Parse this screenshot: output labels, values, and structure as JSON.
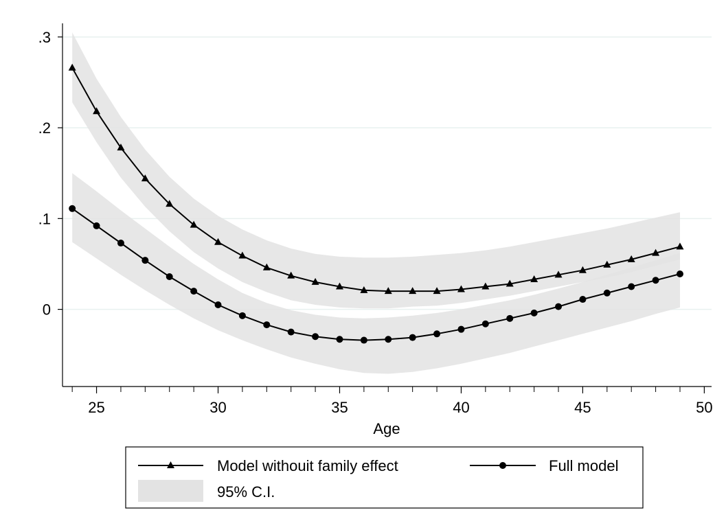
{
  "chart_data": {
    "type": "line",
    "title": "",
    "xlabel": "Age",
    "ylabel": "",
    "xlim": [
      23.6,
      50.3
    ],
    "ylim": [
      -0.085,
      0.315
    ],
    "xticks": [
      25,
      30,
      35,
      40,
      45,
      50
    ],
    "xtick_labels": [
      "25",
      "30",
      "35",
      "40",
      "45",
      "50"
    ],
    "yticks": [
      0,
      0.1,
      0.2,
      0.3
    ],
    "ytick_labels": [
      "0",
      ".1",
      ".2",
      ".3"
    ],
    "grid": "horizontal",
    "x": [
      24,
      25,
      26,
      27,
      28,
      29,
      30,
      31,
      32,
      33,
      34,
      35,
      36,
      37,
      38,
      39,
      40,
      41,
      42,
      43,
      44,
      45,
      46,
      47,
      48,
      49
    ],
    "series": [
      {
        "name": "Model withouit family effect",
        "marker": "triangle",
        "color": "#000000",
        "values": [
          0.266,
          0.218,
          0.178,
          0.144,
          0.116,
          0.093,
          0.074,
          0.059,
          0.046,
          0.037,
          0.03,
          0.025,
          0.021,
          0.02,
          0.02,
          0.02,
          0.022,
          0.025,
          0.028,
          0.033,
          0.038,
          0.043,
          0.049,
          0.055,
          0.062,
          0.069
        ],
        "ci_lower": [
          0.228,
          0.184,
          0.145,
          0.113,
          0.086,
          0.063,
          0.045,
          0.03,
          0.019,
          0.01,
          0.005,
          0.002,
          0.001,
          0.001,
          0.003,
          0.004,
          0.007,
          0.011,
          0.015,
          0.02,
          0.025,
          0.03,
          0.035,
          0.041,
          0.048,
          0.055
        ],
        "ci_upper": [
          0.305,
          0.254,
          0.212,
          0.176,
          0.146,
          0.122,
          0.103,
          0.088,
          0.076,
          0.067,
          0.061,
          0.058,
          0.057,
          0.057,
          0.058,
          0.06,
          0.062,
          0.065,
          0.069,
          0.074,
          0.079,
          0.084,
          0.089,
          0.095,
          0.101,
          0.107
        ]
      },
      {
        "name": "Full model",
        "marker": "circle",
        "color": "#000000",
        "values": [
          0.111,
          0.092,
          0.073,
          0.054,
          0.036,
          0.02,
          0.005,
          -0.007,
          -0.017,
          -0.025,
          -0.03,
          -0.033,
          -0.034,
          -0.033,
          -0.031,
          -0.027,
          -0.022,
          -0.016,
          -0.01,
          -0.004,
          0.003,
          0.011,
          0.018,
          0.025,
          0.032,
          0.039
        ],
        "ci_lower": [
          0.074,
          0.056,
          0.038,
          0.021,
          0.005,
          -0.01,
          -0.023,
          -0.034,
          -0.044,
          -0.053,
          -0.06,
          -0.066,
          -0.07,
          -0.071,
          -0.069,
          -0.065,
          -0.06,
          -0.054,
          -0.048,
          -0.041,
          -0.034,
          -0.027,
          -0.02,
          -0.013,
          -0.005,
          0.002
        ],
        "ci_upper": [
          0.15,
          0.13,
          0.109,
          0.089,
          0.069,
          0.05,
          0.033,
          0.018,
          0.007,
          -0.001,
          -0.006,
          -0.009,
          -0.01,
          -0.009,
          -0.007,
          -0.004,
          0.0,
          0.005,
          0.01,
          0.016,
          0.023,
          0.03,
          0.038,
          0.046,
          0.054,
          0.062
        ]
      }
    ],
    "ci_label": "95% C.I.",
    "ci_color": "#e3e3e3",
    "legend": {
      "placement": "bottom",
      "entries": [
        "Model withouit family effect",
        "Full model",
        "95% C.I."
      ]
    }
  }
}
